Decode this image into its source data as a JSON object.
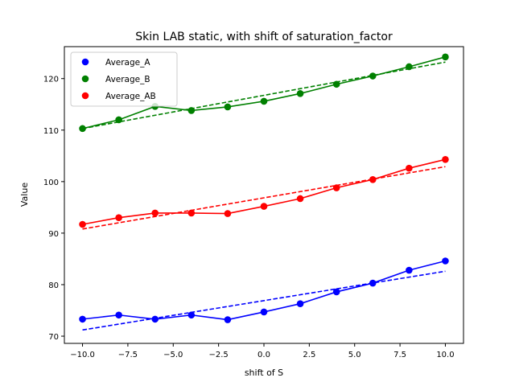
{
  "chart_data": {
    "type": "line",
    "title": "Skin LAB static, with shift of saturation_factor",
    "xlabel": "shift of S",
    "ylabel": "Value",
    "xlim": [
      -11,
      11
    ],
    "ylim": [
      68.6,
      126.2
    ],
    "xticks": [
      -10,
      -7.5,
      -5,
      -2.5,
      0,
      2.5,
      5,
      7.5,
      10
    ],
    "xtick_labels": [
      "−10.0",
      "−7.5",
      "−5.0",
      "−2.5",
      "0.0",
      "2.5",
      "5.0",
      "7.5",
      "10.0"
    ],
    "yticks": [
      70,
      80,
      90,
      100,
      110,
      120
    ],
    "ytick_labels": [
      "70",
      "80",
      "90",
      "100",
      "110",
      "120"
    ],
    "grid": false,
    "legend_position": "upper-left",
    "x": [
      -10,
      -8,
      -6,
      -4,
      -2,
      0,
      2,
      4,
      6,
      8,
      10
    ],
    "series": [
      {
        "name": "Average_A",
        "color": "#0000ff",
        "values": [
          73.3,
          74.1,
          73.3,
          74.1,
          73.2,
          74.7,
          76.3,
          78.6,
          80.3,
          82.8,
          84.6
        ],
        "fit": [
          71.2,
          82.6
        ]
      },
      {
        "name": "Average_B",
        "color": "#008000",
        "values": [
          110.3,
          112.0,
          114.6,
          113.8,
          114.5,
          115.6,
          117.1,
          118.9,
          120.5,
          122.3,
          124.2
        ],
        "fit": [
          110.3,
          123.2
        ]
      },
      {
        "name": "Average_AB",
        "color": "#ff0000",
        "values": [
          91.7,
          93.0,
          93.9,
          93.9,
          93.8,
          95.2,
          96.7,
          98.8,
          100.4,
          102.6,
          104.3
        ],
        "fit": [
          90.8,
          102.9
        ]
      }
    ]
  }
}
